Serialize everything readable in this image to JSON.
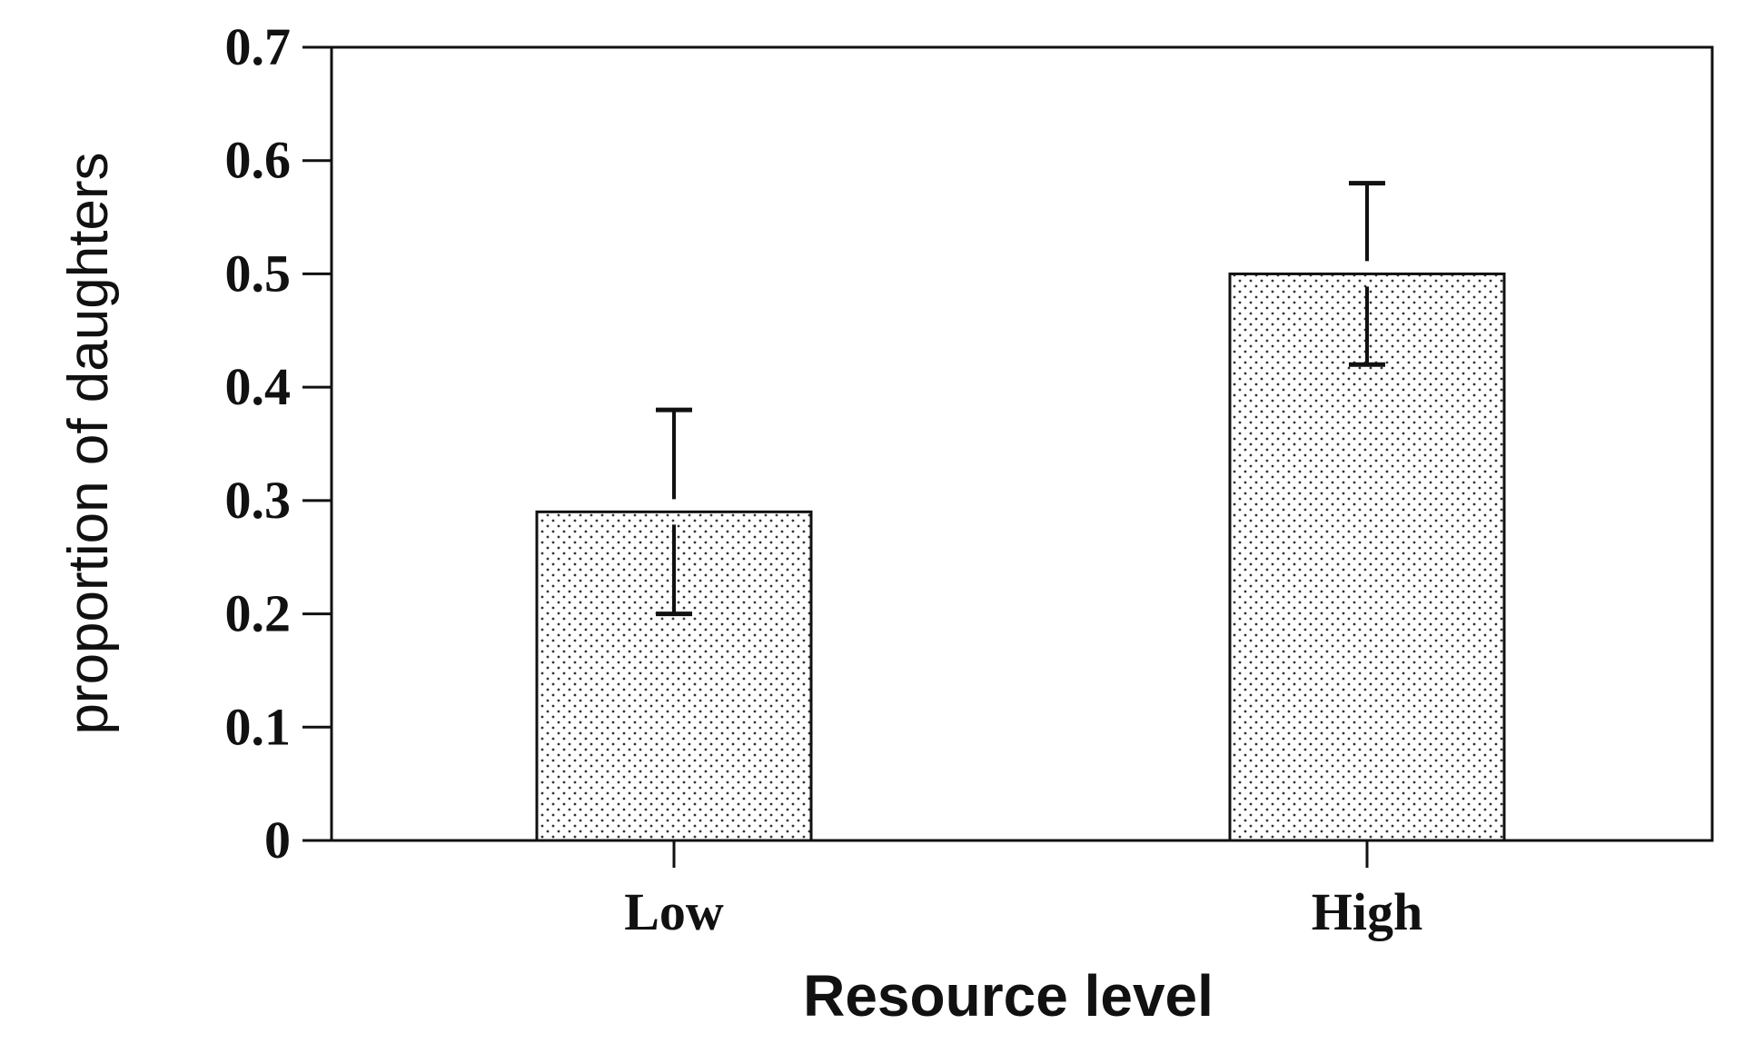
{
  "chart_data": {
    "type": "bar",
    "categories": [
      "Low",
      "High"
    ],
    "values": [
      0.29,
      0.5
    ],
    "error_bars": {
      "lower": [
        0.2,
        0.42
      ],
      "upper": [
        0.38,
        0.58
      ]
    },
    "xlabel": "Resource level",
    "ylabel": "proportion of daughters",
    "ylim": [
      0,
      0.7
    ],
    "yticks": [
      "0",
      "0.1",
      "0.2",
      "0.3",
      "0.4",
      "0.5",
      "0.6",
      "0.7"
    ],
    "grid": false,
    "bar_fill": "stippled",
    "colors": {
      "ink": "#111111",
      "bar_background": "#ffffff",
      "stipple": "#333333"
    }
  }
}
